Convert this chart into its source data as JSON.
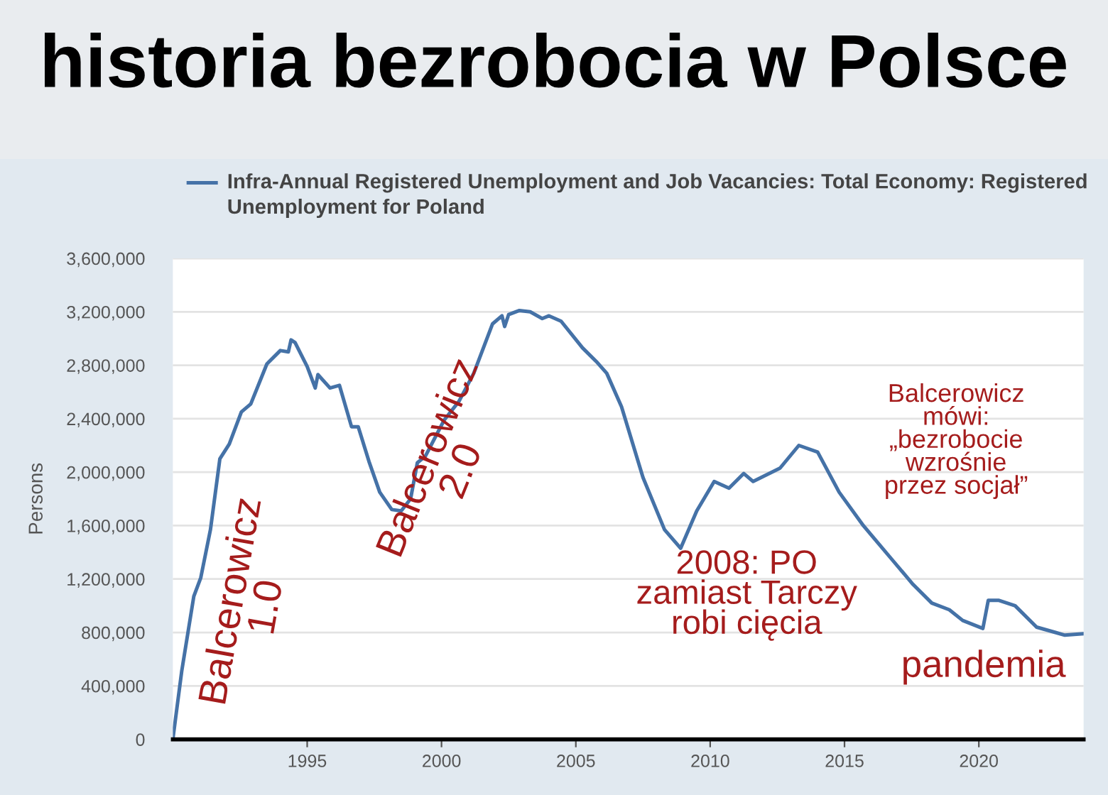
{
  "chart_data": {
    "type": "line",
    "title": "historia bezrobocia w Polsce",
    "ylabel": "Persons",
    "series": [
      {
        "name": "Infra-Annual Registered Unemployment and Job Vacancies: Total Economy: Registered Unemployment for Poland",
        "color": "#4572a7",
        "x": [
          1990.0,
          1990.33,
          1990.78,
          1991.04,
          1991.4,
          1991.75,
          1992.1,
          1992.55,
          1992.9,
          1993.5,
          1994.0,
          1994.3,
          1994.4,
          1994.55,
          1995.0,
          1995.3,
          1995.4,
          1995.85,
          1996.2,
          1996.65,
          1996.9,
          1997.3,
          1997.7,
          1998.15,
          1998.5,
          1998.85,
          1999.1,
          1999.4,
          2000.1,
          2000.65,
          2001.2,
          2001.9,
          2002.25,
          2002.35,
          2002.5,
          2002.9,
          2003.3,
          2003.75,
          2004.0,
          2004.45,
          2005.25,
          2005.8,
          2006.15,
          2006.7,
          2007.5,
          2008.3,
          2008.9,
          2009.5,
          2010.15,
          2010.7,
          2011.25,
          2011.6,
          2012.6,
          2013.3,
          2014.0,
          2014.8,
          2015.7,
          2016.75,
          2017.55,
          2018.25,
          2018.9,
          2019.4,
          2020.15,
          2020.35,
          2020.75,
          2021.35,
          2022.15,
          2022.85,
          2023.2,
          2023.85
        ],
        "values": [
          0,
          510000,
          1070000,
          1210000,
          1570000,
          2100000,
          2210000,
          2450000,
          2510000,
          2810000,
          2910000,
          2900000,
          2990000,
          2970000,
          2790000,
          2630000,
          2730000,
          2630000,
          2650000,
          2340000,
          2340000,
          2080000,
          1850000,
          1720000,
          1710000,
          1800000,
          2070000,
          2120000,
          2390000,
          2530000,
          2740000,
          3110000,
          3170000,
          3090000,
          3180000,
          3210000,
          3200000,
          3150000,
          3170000,
          3130000,
          2930000,
          2820000,
          2740000,
          2490000,
          1960000,
          1570000,
          1430000,
          1710000,
          1930000,
          1880000,
          1990000,
          1930000,
          2030000,
          2200000,
          2150000,
          1850000,
          1600000,
          1350000,
          1160000,
          1020000,
          970000,
          890000,
          830000,
          1040000,
          1040000,
          1000000,
          840000,
          800000,
          780000,
          790000
        ]
      }
    ],
    "xlim": [
      1990,
      2023.9
    ],
    "xticks": [
      1995,
      2000,
      2005,
      2010,
      2015,
      2020
    ],
    "ylim": [
      0,
      3600000
    ],
    "yticks": [
      {
        "value": 0,
        "label": "0"
      },
      {
        "value": 400000,
        "label": "400,000"
      },
      {
        "value": 800000,
        "label": "800,000"
      },
      {
        "value": 1200000,
        "label": "1,200,000"
      },
      {
        "value": 1600000,
        "label": "1,600,000"
      },
      {
        "value": 2000000,
        "label": "2,000,000"
      },
      {
        "value": 2400000,
        "label": "2,400,000"
      },
      {
        "value": 2800000,
        "label": "2,800,000"
      },
      {
        "value": 3200000,
        "label": "3,200,000"
      },
      {
        "value": 3600000,
        "label": "3,600,000"
      }
    ],
    "grid": "y",
    "legend": "top left",
    "marker": "none",
    "line_style": "solid",
    "annotations": [
      "Balcerowicz\n1.0",
      "Balcerowicz\n2.0",
      "2008: PO\nzamiast Tarczy\nrobi cięcia",
      "Balcerowicz\nmówi:\n„bezrobocie\nwzrośnie\nprzez socjał”",
      "pandemia"
    ]
  }
}
